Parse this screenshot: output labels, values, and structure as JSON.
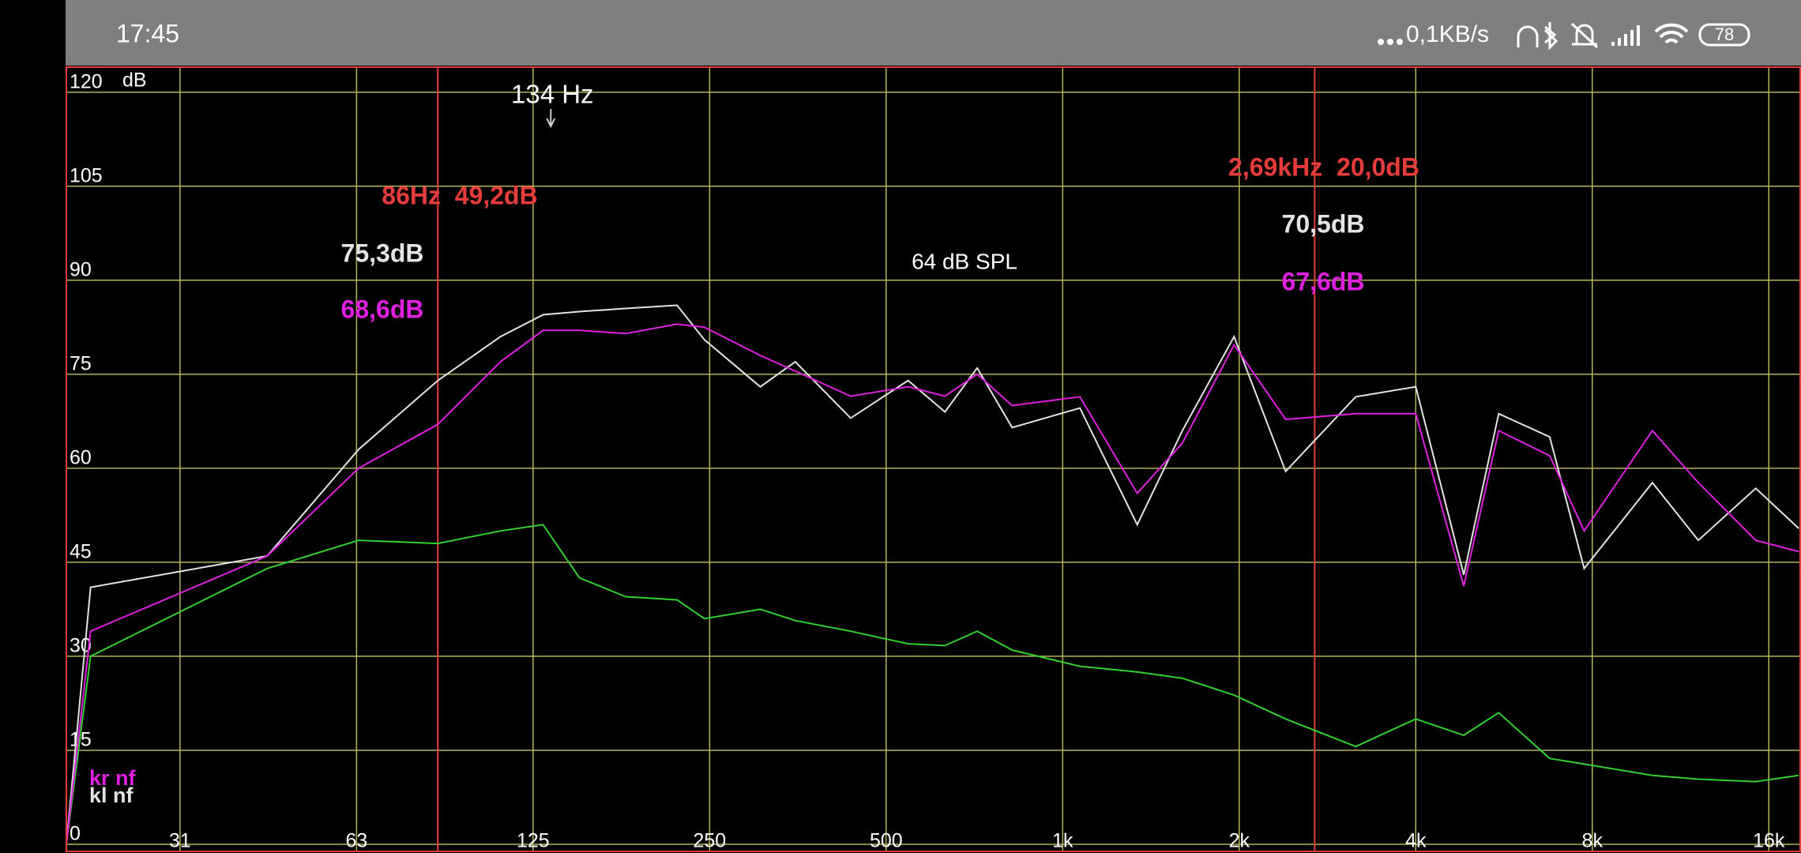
{
  "status_bar": {
    "time": "17:45",
    "network_speed": "0,1KB/s",
    "battery": "78"
  },
  "chart_data": {
    "type": "line",
    "xscale": "log",
    "grid": true,
    "grid_color": "#b4b45a",
    "y_unit": "dB",
    "xlim": [
      20,
      18100
    ],
    "ylim": [
      0,
      124
    ],
    "xticks": [
      {
        "value": 31.25,
        "label": "31"
      },
      {
        "value": 62.5,
        "label": "63"
      },
      125,
      250,
      500,
      {
        "value": 1000,
        "label": "1k"
      },
      {
        "value": 2000,
        "label": "2k"
      },
      {
        "value": 4000,
        "label": "4k"
      },
      {
        "value": 8000,
        "label": "8k"
      },
      {
        "value": 16000,
        "label": "16k"
      }
    ],
    "yticks": [
      0,
      15,
      30,
      45,
      60,
      75,
      90,
      105,
      120
    ],
    "x": [
      20,
      22,
      44,
      63,
      86,
      110,
      130,
      150,
      180,
      220,
      245,
      305,
      350,
      435,
      545,
      630,
      715,
      820,
      1070,
      1340,
      1600,
      1960,
      2400,
      3160,
      4000,
      4830,
      5540,
      6770,
      7750,
      10130,
      12130,
      15200,
      18000
    ],
    "series": [
      {
        "name": "kr nf",
        "color": "#e020e0",
        "values": [
          0,
          34,
          46,
          60,
          67,
          77,
          82,
          82,
          81.5,
          83,
          82.5,
          78,
          75.5,
          71.5,
          73,
          71.5,
          75,
          70,
          71.4,
          56,
          64,
          79.7,
          67.8,
          68.7,
          68.7,
          41.2,
          66,
          62,
          50,
          66,
          57.7,
          48.5,
          46.7
        ]
      },
      {
        "name": "kl nf",
        "color": "#e4e4e4",
        "values": [
          0,
          41,
          46,
          63,
          74,
          81,
          84.5,
          85,
          85.5,
          86,
          80.5,
          73,
          77,
          68,
          74,
          69,
          76,
          66.5,
          69.6,
          51,
          66,
          81,
          59.5,
          71.4,
          73,
          43,
          68.7,
          65,
          44,
          57.7,
          48.5,
          56.8,
          50.4
        ]
      },
      {
        "color": "#30d030",
        "values": [
          0,
          30,
          44,
          48.5,
          48,
          50,
          51,
          42.5,
          39.5,
          39,
          36,
          37.5,
          35.7,
          34,
          32,
          31.7,
          34,
          31,
          28.4,
          27.5,
          26.5,
          23.8,
          20,
          15.6,
          20,
          17.4,
          21,
          13.7,
          12.8,
          11,
          10.4,
          10,
          11
        ]
      }
    ],
    "cursor_color": "#e83c3c",
    "cursors": [
      {
        "value": 86,
        "label": "86Hz  49,2dB",
        "readouts": [
          "75,3dB",
          "68,6dB"
        ]
      },
      {
        "value": 2690,
        "label": "2,69kHz  20,0dB",
        "readouts": [
          "70,5dB",
          "67,6dB"
        ]
      }
    ],
    "peak_marker": {
      "value": 134,
      "label": "134 Hz"
    },
    "spl_label": "64 dB SPL"
  }
}
